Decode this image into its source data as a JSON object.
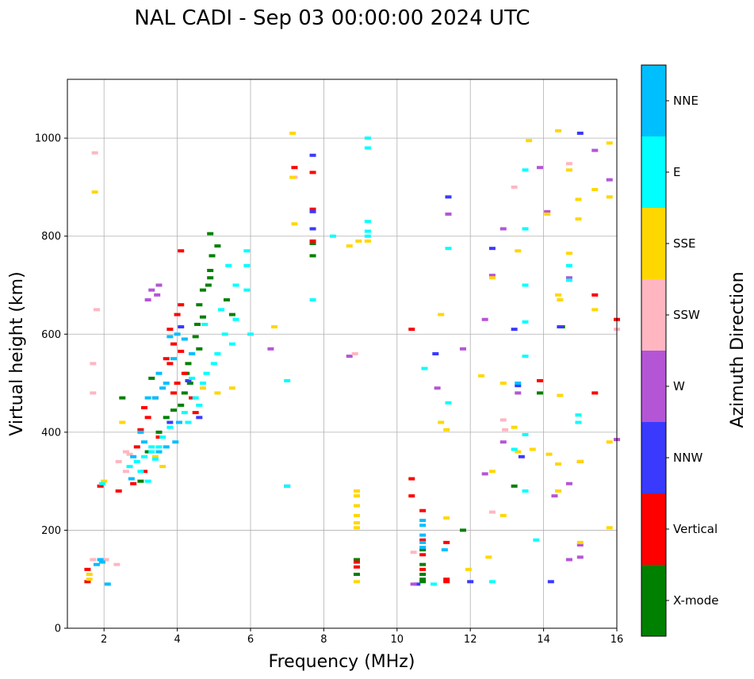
{
  "chart_data": {
    "type": "scatter",
    "title": "NAL CADI - Sep 03 00:00:00 2024 UTC",
    "xlabel": "Frequency (MHz)",
    "ylabel": "Virtual height (km)",
    "xlim": [
      1,
      16
    ],
    "ylim": [
      0,
      1120
    ],
    "xticks": [
      2,
      4,
      6,
      8,
      10,
      12,
      14,
      16
    ],
    "yticks": [
      0,
      200,
      400,
      600,
      800,
      1000
    ],
    "grid": true,
    "colorbar": {
      "label": "Azimuth Direction",
      "categories": [
        {
          "name": "X-mode",
          "color": "#008000"
        },
        {
          "name": "Vertical",
          "color": "#ff0000"
        },
        {
          "name": "NNW",
          "color": "#3a3aff"
        },
        {
          "name": "W",
          "color": "#b455d6"
        },
        {
          "name": "SSW",
          "color": "#ffb6c1"
        },
        {
          "name": "SSE",
          "color": "#ffd700"
        },
        {
          "name": "E",
          "color": "#00ffff"
        },
        {
          "name": "NNE",
          "color": "#00bfff"
        }
      ]
    },
    "series": [
      {
        "name": "X-mode",
        "points": [
          [
            4.9,
            805
          ],
          [
            4.95,
            760
          ],
          [
            4.9,
            730
          ],
          [
            4.85,
            700
          ],
          [
            4.7,
            690
          ],
          [
            4.6,
            660
          ],
          [
            4.7,
            635
          ],
          [
            4.55,
            620
          ],
          [
            4.5,
            595
          ],
          [
            4.4,
            560
          ],
          [
            4.3,
            540
          ],
          [
            4.25,
            520
          ],
          [
            4.35,
            500
          ],
          [
            4.2,
            480
          ],
          [
            4.1,
            455
          ],
          [
            3.9,
            445
          ],
          [
            3.7,
            430
          ],
          [
            3.5,
            400
          ],
          [
            3.2,
            360
          ],
          [
            3.0,
            300
          ],
          [
            2.5,
            470
          ],
          [
            3.3,
            510
          ],
          [
            4.6,
            570
          ],
          [
            5.35,
            670
          ],
          [
            5.5,
            640
          ],
          [
            7.7,
            760
          ],
          [
            7.7,
            785
          ],
          [
            8.9,
            140
          ],
          [
            8.9,
            110
          ],
          [
            10.7,
            160
          ],
          [
            10.7,
            130
          ],
          [
            10.7,
            110
          ],
          [
            10.7,
            100
          ],
          [
            10.7,
            95
          ],
          [
            11.8,
            200
          ],
          [
            13.9,
            480
          ],
          [
            13.2,
            290
          ],
          [
            14.5,
            615
          ],
          [
            5.1,
            780
          ],
          [
            4.9,
            715
          ]
        ]
      },
      {
        "name": "Vertical",
        "points": [
          [
            4.1,
            770
          ],
          [
            4.1,
            660
          ],
          [
            4.0,
            640
          ],
          [
            3.8,
            610
          ],
          [
            3.9,
            580
          ],
          [
            4.1,
            565
          ],
          [
            3.7,
            550
          ],
          [
            3.8,
            540
          ],
          [
            4.2,
            520
          ],
          [
            4.0,
            500
          ],
          [
            3.9,
            480
          ],
          [
            4.4,
            470
          ],
          [
            3.4,
            470
          ],
          [
            3.1,
            450
          ],
          [
            3.2,
            430
          ],
          [
            3.0,
            405
          ],
          [
            3.5,
            390
          ],
          [
            2.9,
            370
          ],
          [
            3.1,
            320
          ],
          [
            2.8,
            295
          ],
          [
            2.4,
            280
          ],
          [
            1.9,
            290
          ],
          [
            1.55,
            120
          ],
          [
            1.55,
            95
          ],
          [
            7.2,
            940
          ],
          [
            7.7,
            930
          ],
          [
            7.7,
            855
          ],
          [
            7.7,
            790
          ],
          [
            8.9,
            135
          ],
          [
            8.9,
            125
          ],
          [
            10.4,
            610
          ],
          [
            10.4,
            305
          ],
          [
            10.4,
            270
          ],
          [
            10.7,
            240
          ],
          [
            10.7,
            180
          ],
          [
            10.7,
            150
          ],
          [
            10.7,
            120
          ],
          [
            11.35,
            175
          ],
          [
            11.35,
            100
          ],
          [
            11.35,
            95
          ],
          [
            13.9,
            505
          ],
          [
            15.0,
            340
          ],
          [
            15.4,
            680
          ],
          [
            15.4,
            480
          ],
          [
            16.0,
            630
          ],
          [
            4.5,
            440
          ]
        ]
      },
      {
        "name": "NNW",
        "points": [
          [
            4.1,
            615
          ],
          [
            4.3,
            505
          ],
          [
            3.8,
            420
          ],
          [
            7.7,
            965
          ],
          [
            7.7,
            850
          ],
          [
            7.7,
            815
          ],
          [
            11.05,
            560
          ],
          [
            11.4,
            880
          ],
          [
            12.6,
            775
          ],
          [
            13.3,
            495
          ],
          [
            13.4,
            350
          ],
          [
            13.2,
            610
          ],
          [
            14.2,
            95
          ],
          [
            15.0,
            1010
          ],
          [
            12.0,
            95
          ],
          [
            10.55,
            90
          ],
          [
            14.45,
            615
          ],
          [
            4.6,
            430
          ]
        ]
      },
      {
        "name": "W",
        "points": [
          [
            3.3,
            690
          ],
          [
            3.5,
            700
          ],
          [
            3.45,
            680
          ],
          [
            3.2,
            670
          ],
          [
            6.55,
            570
          ],
          [
            7.0,
            290
          ],
          [
            8.7,
            555
          ],
          [
            11.1,
            490
          ],
          [
            11.4,
            845
          ],
          [
            11.8,
            570
          ],
          [
            12.4,
            630
          ],
          [
            12.4,
            315
          ],
          [
            12.9,
            815
          ],
          [
            13.3,
            480
          ],
          [
            12.6,
            720
          ],
          [
            14.1,
            850
          ],
          [
            14.3,
            270
          ],
          [
            14.7,
            140
          ],
          [
            14.7,
            295
          ],
          [
            14.7,
            715
          ],
          [
            15.0,
            145
          ],
          [
            15.0,
            170
          ],
          [
            15.4,
            975
          ],
          [
            15.8,
            915
          ],
          [
            16.0,
            385
          ],
          [
            12.9,
            380
          ],
          [
            13.9,
            940
          ],
          [
            10.45,
            90
          ]
        ]
      },
      {
        "name": "SSW",
        "points": [
          [
            1.75,
            970
          ],
          [
            1.8,
            650
          ],
          [
            1.7,
            540
          ],
          [
            1.7,
            480
          ],
          [
            1.7,
            140
          ],
          [
            2.4,
            340
          ],
          [
            2.6,
            360
          ],
          [
            2.6,
            320
          ],
          [
            2.05,
            140
          ],
          [
            2.35,
            130
          ],
          [
            2.7,
            355
          ],
          [
            7.2,
            920
          ],
          [
            8.85,
            560
          ],
          [
            10.45,
            155
          ],
          [
            12.9,
            425
          ],
          [
            13.2,
            900
          ],
          [
            14.7,
            948
          ],
          [
            16.0,
            610
          ],
          [
            12.6,
            237
          ],
          [
            12.95,
            405
          ]
        ]
      },
      {
        "name": "SSE",
        "points": [
          [
            7.15,
            1010
          ],
          [
            7.2,
            825
          ],
          [
            7.15,
            920
          ],
          [
            6.65,
            615
          ],
          [
            8.9,
            280
          ],
          [
            8.9,
            270
          ],
          [
            8.9,
            250
          ],
          [
            8.9,
            230
          ],
          [
            8.9,
            215
          ],
          [
            8.9,
            205
          ],
          [
            8.9,
            95
          ],
          [
            8.95,
            790
          ],
          [
            8.7,
            780
          ],
          [
            9.2,
            790
          ],
          [
            1.6,
            110
          ],
          [
            1.6,
            100
          ],
          [
            1.75,
            890
          ],
          [
            2.5,
            420
          ],
          [
            2.0,
            300
          ],
          [
            3.6,
            330
          ],
          [
            3.4,
            350
          ],
          [
            4.7,
            490
          ],
          [
            5.1,
            480
          ],
          [
            5.5,
            490
          ],
          [
            11.2,
            640
          ],
          [
            11.2,
            420
          ],
          [
            11.35,
            405
          ],
          [
            11.35,
            225
          ],
          [
            11.95,
            120
          ],
          [
            12.3,
            515
          ],
          [
            12.5,
            145
          ],
          [
            12.6,
            715
          ],
          [
            12.6,
            320
          ],
          [
            12.9,
            230
          ],
          [
            12.9,
            500
          ],
          [
            13.2,
            410
          ],
          [
            13.3,
            770
          ],
          [
            13.3,
            360
          ],
          [
            13.6,
            995
          ],
          [
            14.1,
            845
          ],
          [
            14.15,
            355
          ],
          [
            14.4,
            1015
          ],
          [
            14.4,
            680
          ],
          [
            14.4,
            335
          ],
          [
            14.4,
            280
          ],
          [
            14.7,
            765
          ],
          [
            14.7,
            935
          ],
          [
            14.95,
            835
          ],
          [
            14.95,
            875
          ],
          [
            14.95,
            435
          ],
          [
            15.0,
            340
          ],
          [
            15.0,
            175
          ],
          [
            15.4,
            650
          ],
          [
            15.4,
            895
          ],
          [
            15.8,
            990
          ],
          [
            15.8,
            880
          ],
          [
            15.8,
            205
          ],
          [
            15.8,
            380
          ],
          [
            13.7,
            365
          ],
          [
            14.45,
            670
          ],
          [
            14.45,
            475
          ]
        ]
      },
      {
        "name": "E",
        "points": [
          [
            5.9,
            770
          ],
          [
            5.9,
            740
          ],
          [
            5.4,
            740
          ],
          [
            5.9,
            690
          ],
          [
            5.6,
            700
          ],
          [
            6.0,
            600
          ],
          [
            5.3,
            600
          ],
          [
            5.1,
            560
          ],
          [
            5.5,
            580
          ],
          [
            5.0,
            540
          ],
          [
            4.8,
            520
          ],
          [
            4.7,
            500
          ],
          [
            4.5,
            470
          ],
          [
            4.6,
            455
          ],
          [
            4.2,
            440
          ],
          [
            4.3,
            420
          ],
          [
            3.8,
            410
          ],
          [
            3.6,
            390
          ],
          [
            3.3,
            370
          ],
          [
            3.1,
            350
          ],
          [
            2.9,
            340
          ],
          [
            3.0,
            320
          ],
          [
            3.3,
            360
          ],
          [
            3.5,
            370
          ],
          [
            3.4,
            345
          ],
          [
            3.2,
            300
          ],
          [
            2.7,
            330
          ],
          [
            1.95,
            295
          ],
          [
            7.0,
            505
          ],
          [
            7.0,
            290
          ],
          [
            7.7,
            670
          ],
          [
            8.25,
            800
          ],
          [
            9.2,
            1000
          ],
          [
            9.2,
            980
          ],
          [
            9.2,
            830
          ],
          [
            9.2,
            810
          ],
          [
            9.2,
            800
          ],
          [
            10.75,
            530
          ],
          [
            11.0,
            90
          ],
          [
            11.4,
            460
          ],
          [
            11.4,
            775
          ],
          [
            12.6,
            95
          ],
          [
            13.5,
            280
          ],
          [
            13.5,
            395
          ],
          [
            13.5,
            555
          ],
          [
            13.5,
            625
          ],
          [
            13.5,
            700
          ],
          [
            13.5,
            815
          ],
          [
            13.5,
            935
          ],
          [
            13.8,
            180
          ],
          [
            14.7,
            740
          ],
          [
            14.7,
            710
          ],
          [
            14.95,
            420
          ],
          [
            14.95,
            435
          ],
          [
            13.2,
            365
          ],
          [
            4.75,
            620
          ],
          [
            5.2,
            650
          ],
          [
            5.6,
            630
          ],
          [
            4.4,
            510
          ]
        ]
      },
      {
        "name": "NNE",
        "points": [
          [
            1.9,
            140
          ],
          [
            1.8,
            130
          ],
          [
            2.1,
            90
          ],
          [
            1.95,
            135
          ],
          [
            3.2,
            470
          ],
          [
            3.4,
            470
          ],
          [
            3.6,
            490
          ],
          [
            3.5,
            520
          ],
          [
            3.7,
            500
          ],
          [
            3.9,
            550
          ],
          [
            3.8,
            595
          ],
          [
            4.0,
            600
          ],
          [
            4.4,
            560
          ],
          [
            4.2,
            590
          ],
          [
            4.05,
            420
          ],
          [
            3.95,
            380
          ],
          [
            3.7,
            370
          ],
          [
            3.5,
            360
          ],
          [
            3.1,
            380
          ],
          [
            3.0,
            400
          ],
          [
            2.8,
            350
          ],
          [
            2.75,
            305
          ],
          [
            10.7,
            220
          ],
          [
            10.7,
            210
          ],
          [
            10.7,
            190
          ],
          [
            10.7,
            175
          ],
          [
            10.7,
            165
          ],
          [
            11.3,
            160
          ],
          [
            13.3,
            500
          ]
        ]
      }
    ]
  }
}
